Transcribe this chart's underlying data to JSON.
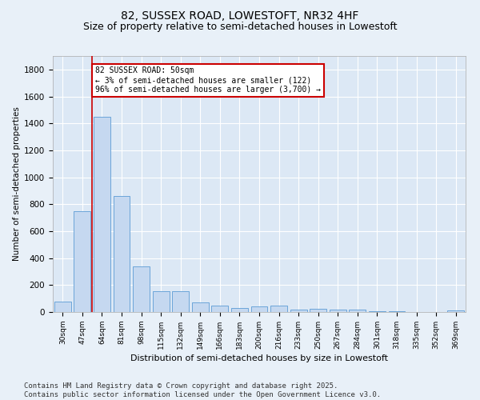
{
  "title1": "82, SUSSEX ROAD, LOWESTOFT, NR32 4HF",
  "title2": "Size of property relative to semi-detached houses in Lowestoft",
  "xlabel": "Distribution of semi-detached houses by size in Lowestoft",
  "ylabel": "Number of semi-detached properties",
  "categories": [
    "30sqm",
    "47sqm",
    "64sqm",
    "81sqm",
    "98sqm",
    "115sqm",
    "132sqm",
    "149sqm",
    "166sqm",
    "183sqm",
    "200sqm",
    "216sqm",
    "233sqm",
    "250sqm",
    "267sqm",
    "284sqm",
    "301sqm",
    "318sqm",
    "335sqm",
    "352sqm",
    "369sqm"
  ],
  "values": [
    75,
    750,
    1450,
    860,
    340,
    155,
    155,
    70,
    50,
    30,
    40,
    50,
    20,
    25,
    15,
    15,
    5,
    3,
    2,
    1,
    10
  ],
  "bar_color": "#c5d8f0",
  "bar_edge_color": "#5b9bd5",
  "annotation_text": "82 SUSSEX ROAD: 50sqm\n← 3% of semi-detached houses are smaller (122)\n96% of semi-detached houses are larger (3,700) →",
  "annotation_box_color": "#ffffff",
  "annotation_box_edge_color": "#cc0000",
  "vline_color": "#cc0000",
  "ylim": [
    0,
    1900
  ],
  "yticks": [
    0,
    200,
    400,
    600,
    800,
    1000,
    1200,
    1400,
    1600,
    1800
  ],
  "footer_text": "Contains HM Land Registry data © Crown copyright and database right 2025.\nContains public sector information licensed under the Open Government Licence v3.0.",
  "background_color": "#e8f0f8",
  "plot_bg_color": "#dce8f5",
  "grid_color": "#ffffff",
  "title_fontsize": 10,
  "subtitle_fontsize": 9,
  "annotation_fontsize": 7,
  "footer_fontsize": 6.5,
  "ylabel_fontsize": 7.5,
  "xlabel_fontsize": 8
}
